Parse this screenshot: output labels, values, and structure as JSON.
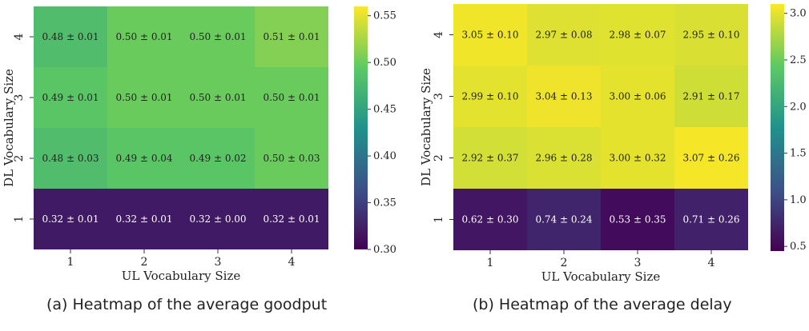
{
  "chart_data": [
    {
      "type": "heatmap",
      "caption": "(a) Heatmap of the average goodput",
      "xlabel": "UL Vocabulary Size",
      "ylabel": "DL Vocabulary Size",
      "x_categories": [
        "1",
        "2",
        "3",
        "4"
      ],
      "y_categories": [
        "4",
        "3",
        "2",
        "1"
      ],
      "values": [
        [
          0.48,
          0.5,
          0.5,
          0.51
        ],
        [
          0.49,
          0.5,
          0.5,
          0.5
        ],
        [
          0.48,
          0.49,
          0.49,
          0.5
        ],
        [
          0.32,
          0.32,
          0.32,
          0.32
        ]
      ],
      "cell_labels": [
        [
          "0.48 ± 0.01",
          "0.50 ± 0.01",
          "0.50 ± 0.01",
          "0.51 ± 0.01"
        ],
        [
          "0.49 ± 0.01",
          "0.50 ± 0.01",
          "0.50 ± 0.01",
          "0.50 ± 0.01"
        ],
        [
          "0.48 ± 0.03",
          "0.49 ± 0.04",
          "0.49 ± 0.02",
          "0.50 ± 0.03"
        ],
        [
          "0.32 ± 0.01",
          "0.32 ± 0.01",
          "0.32 ± 0.00",
          "0.32 ± 0.01"
        ]
      ],
      "colorbar": {
        "min": 0.3,
        "max": 0.56,
        "ticks": [
          "0.30",
          "0.35",
          "0.40",
          "0.45",
          "0.50",
          "0.55"
        ],
        "colormap": "viridis"
      }
    },
    {
      "type": "heatmap",
      "caption": "(b) Heatmap of the average delay",
      "xlabel": "UL Vocabulary Size",
      "ylabel": "DL Vocabulary Size",
      "x_categories": [
        "1",
        "2",
        "3",
        "4"
      ],
      "y_categories": [
        "4",
        "3",
        "2",
        "1"
      ],
      "values": [
        [
          3.05,
          2.97,
          2.98,
          2.95
        ],
        [
          2.99,
          3.04,
          3.0,
          2.91
        ],
        [
          2.92,
          2.96,
          3.0,
          3.07
        ],
        [
          0.62,
          0.74,
          0.53,
          0.71
        ]
      ],
      "cell_labels": [
        [
          "3.05 ± 0.10",
          "2.97 ± 0.08",
          "2.98 ± 0.07",
          "2.95 ± 0.10"
        ],
        [
          "2.99 ± 0.10",
          "3.04 ± 0.13",
          "3.00 ± 0.06",
          "2.91 ± 0.17"
        ],
        [
          "2.92 ± 0.37",
          "2.96 ± 0.28",
          "3.00 ± 0.32",
          "3.07 ± 0.26"
        ],
        [
          "0.62 ± 0.30",
          "0.74 ± 0.24",
          "0.53 ± 0.35",
          "0.71 ± 0.26"
        ]
      ],
      "colorbar": {
        "min": 0.45,
        "max": 3.1,
        "ticks": [
          "0.5",
          "1.0",
          "1.5",
          "2.0",
          "2.5",
          "3.0"
        ],
        "colormap": "viridis"
      }
    }
  ]
}
